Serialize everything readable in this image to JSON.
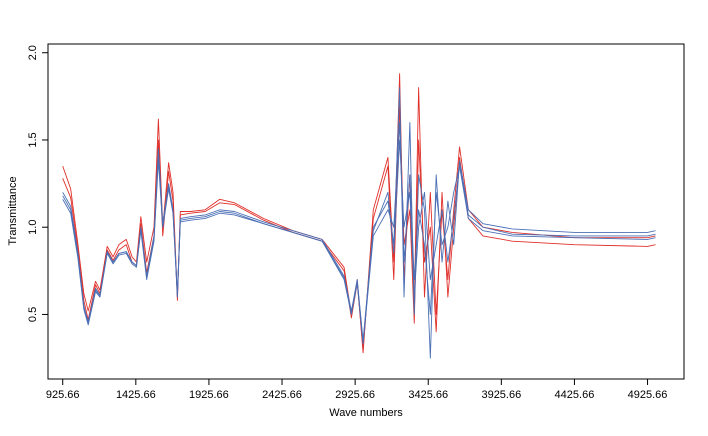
{
  "chart_data": {
    "type": "line",
    "xlabel": "Wave numbers",
    "ylabel": "Transmittance",
    "xlim": [
      825,
      5175
    ],
    "ylim": [
      0.13,
      2.05
    ],
    "x_ticks": [
      925.66,
      1425.66,
      1925.66,
      2425.66,
      2925.66,
      3425.66,
      3925.66,
      4425.66,
      4925.66
    ],
    "x_tick_labels": [
      "925.66",
      "1425.66",
      "1925.66",
      "2425.66",
      "2925.66",
      "3425.66",
      "3925.66",
      "4425.66",
      "4925.66"
    ],
    "y_ticks": [
      0.5,
      1.0,
      1.5,
      2.0
    ],
    "y_tick_labels": [
      "0.5",
      "1.0",
      "1.5",
      "2.0"
    ],
    "grid": false,
    "legend": "none",
    "colors": {
      "red": "#e0302a",
      "blue": "#4a6fb5"
    },
    "series": [
      {
        "color": "#e0302a",
        "values": [
          [
            925.66,
            1.35
          ],
          [
            980,
            1.22
          ],
          [
            1030,
            0.9
          ],
          [
            1070,
            0.62
          ],
          [
            1100,
            0.52
          ],
          [
            1150,
            0.69
          ],
          [
            1180,
            0.64
          ],
          [
            1230,
            0.89
          ],
          [
            1270,
            0.83
          ],
          [
            1310,
            0.9
          ],
          [
            1360,
            0.93
          ],
          [
            1400,
            0.83
          ],
          [
            1430,
            0.8
          ],
          [
            1460,
            1.06
          ],
          [
            1500,
            0.8
          ],
          [
            1550,
            1.0
          ],
          [
            1580,
            1.62
          ],
          [
            1610,
            1.0
          ],
          [
            1650,
            1.37
          ],
          [
            1680,
            1.2
          ],
          [
            1710,
            0.6
          ],
          [
            1730,
            1.09
          ],
          [
            1800,
            1.09
          ],
          [
            1900,
            1.1
          ],
          [
            2000,
            1.16
          ],
          [
            2100,
            1.14
          ],
          [
            2300,
            1.05
          ],
          [
            2500,
            0.98
          ],
          [
            2700,
            0.93
          ],
          [
            2850,
            0.77
          ],
          [
            2900,
            0.5
          ],
          [
            2940,
            0.7
          ],
          [
            2980,
            0.28
          ],
          [
            3050,
            1.1
          ],
          [
            3150,
            1.4
          ],
          [
            3190,
            0.8
          ],
          [
            3230,
            1.88
          ],
          [
            3260,
            0.7
          ],
          [
            3300,
            1.3
          ],
          [
            3330,
            0.55
          ],
          [
            3360,
            1.8
          ],
          [
            3400,
            0.6
          ],
          [
            3440,
            1.2
          ],
          [
            3480,
            0.5
          ],
          [
            3520,
            1.1
          ],
          [
            3560,
            0.7
          ],
          [
            3600,
            1.1
          ],
          [
            3640,
            1.46
          ],
          [
            3700,
            1.1
          ],
          [
            3800,
            1.0
          ],
          [
            4000,
            0.97
          ],
          [
            4425.66,
            0.94
          ],
          [
            4925.66,
            0.94
          ],
          [
            4980,
            0.95
          ]
        ]
      },
      {
        "color": "#e0302a",
        "values": [
          [
            925.66,
            1.28
          ],
          [
            980,
            1.17
          ],
          [
            1030,
            0.87
          ],
          [
            1070,
            0.58
          ],
          [
            1100,
            0.47
          ],
          [
            1150,
            0.67
          ],
          [
            1180,
            0.62
          ],
          [
            1230,
            0.87
          ],
          [
            1270,
            0.81
          ],
          [
            1310,
            0.87
          ],
          [
            1360,
            0.9
          ],
          [
            1400,
            0.8
          ],
          [
            1430,
            0.78
          ],
          [
            1460,
            1.02
          ],
          [
            1500,
            0.74
          ],
          [
            1550,
            0.95
          ],
          [
            1580,
            1.5
          ],
          [
            1610,
            0.95
          ],
          [
            1650,
            1.32
          ],
          [
            1680,
            1.15
          ],
          [
            1710,
            0.58
          ],
          [
            1730,
            1.07
          ],
          [
            1800,
            1.08
          ],
          [
            1900,
            1.09
          ],
          [
            2000,
            1.14
          ],
          [
            2100,
            1.13
          ],
          [
            2300,
            1.04
          ],
          [
            2500,
            0.97
          ],
          [
            2700,
            0.92
          ],
          [
            2850,
            0.75
          ],
          [
            2900,
            0.48
          ],
          [
            2940,
            0.68
          ],
          [
            2980,
            0.3
          ],
          [
            3050,
            1.05
          ],
          [
            3150,
            1.35
          ],
          [
            3190,
            0.7
          ],
          [
            3230,
            1.7
          ],
          [
            3260,
            0.9
          ],
          [
            3300,
            1.1
          ],
          [
            3330,
            0.45
          ],
          [
            3360,
            1.5
          ],
          [
            3400,
            0.8
          ],
          [
            3440,
            1.0
          ],
          [
            3480,
            0.4
          ],
          [
            3520,
            1.2
          ],
          [
            3560,
            0.6
          ],
          [
            3600,
            1.0
          ],
          [
            3640,
            1.4
          ],
          [
            3700,
            1.05
          ],
          [
            3800,
            0.95
          ],
          [
            4000,
            0.92
          ],
          [
            4425.66,
            0.9
          ],
          [
            4925.66,
            0.89
          ],
          [
            4980,
            0.9
          ]
        ]
      },
      {
        "color": "#4a6fb5",
        "values": [
          [
            925.66,
            1.2
          ],
          [
            980,
            1.12
          ],
          [
            1030,
            0.85
          ],
          [
            1070,
            0.55
          ],
          [
            1100,
            0.45
          ],
          [
            1150,
            0.65
          ],
          [
            1180,
            0.61
          ],
          [
            1230,
            0.86
          ],
          [
            1270,
            0.8
          ],
          [
            1310,
            0.85
          ],
          [
            1360,
            0.86
          ],
          [
            1400,
            0.8
          ],
          [
            1430,
            0.78
          ],
          [
            1460,
            1.0
          ],
          [
            1500,
            0.72
          ],
          [
            1550,
            0.95
          ],
          [
            1580,
            1.45
          ],
          [
            1610,
            1.02
          ],
          [
            1650,
            1.25
          ],
          [
            1680,
            1.1
          ],
          [
            1710,
            0.62
          ],
          [
            1730,
            1.05
          ],
          [
            1800,
            1.06
          ],
          [
            1900,
            1.07
          ],
          [
            2000,
            1.1
          ],
          [
            2100,
            1.09
          ],
          [
            2300,
            1.03
          ],
          [
            2500,
            0.98
          ],
          [
            2700,
            0.93
          ],
          [
            2850,
            0.72
          ],
          [
            2900,
            0.52
          ],
          [
            2940,
            0.7
          ],
          [
            2980,
            0.35
          ],
          [
            3050,
            1.0
          ],
          [
            3150,
            1.15
          ],
          [
            3190,
            0.9
          ],
          [
            3230,
            1.8
          ],
          [
            3260,
            0.6
          ],
          [
            3300,
            1.6
          ],
          [
            3330,
            0.5
          ],
          [
            3360,
            1.3
          ],
          [
            3400,
            1.1
          ],
          [
            3440,
            0.25
          ],
          [
            3480,
            1.3
          ],
          [
            3520,
            0.8
          ],
          [
            3560,
            1.15
          ],
          [
            3600,
            0.9
          ],
          [
            3640,
            1.38
          ],
          [
            3700,
            1.1
          ],
          [
            3800,
            1.02
          ],
          [
            4000,
            0.99
          ],
          [
            4425.66,
            0.97
          ],
          [
            4925.66,
            0.97
          ],
          [
            4980,
            0.98
          ]
        ]
      },
      {
        "color": "#4a6fb5",
        "values": [
          [
            925.66,
            1.16
          ],
          [
            980,
            1.08
          ],
          [
            1030,
            0.82
          ],
          [
            1070,
            0.53
          ],
          [
            1100,
            0.44
          ],
          [
            1150,
            0.63
          ],
          [
            1180,
            0.6
          ],
          [
            1230,
            0.85
          ],
          [
            1270,
            0.79
          ],
          [
            1310,
            0.84
          ],
          [
            1360,
            0.85
          ],
          [
            1400,
            0.79
          ],
          [
            1430,
            0.77
          ],
          [
            1460,
            0.98
          ],
          [
            1500,
            0.7
          ],
          [
            1550,
            0.92
          ],
          [
            1580,
            1.38
          ],
          [
            1610,
            1.0
          ],
          [
            1650,
            1.22
          ],
          [
            1680,
            1.08
          ],
          [
            1710,
            0.6
          ],
          [
            1730,
            1.03
          ],
          [
            1800,
            1.04
          ],
          [
            1900,
            1.05
          ],
          [
            2000,
            1.08
          ],
          [
            2100,
            1.07
          ],
          [
            2300,
            1.02
          ],
          [
            2500,
            0.97
          ],
          [
            2700,
            0.92
          ],
          [
            2850,
            0.7
          ],
          [
            2900,
            0.5
          ],
          [
            2940,
            0.68
          ],
          [
            2980,
            0.33
          ],
          [
            3050,
            0.95
          ],
          [
            3150,
            1.1
          ],
          [
            3190,
            1.0
          ],
          [
            3230,
            1.6
          ],
          [
            3260,
            0.8
          ],
          [
            3300,
            1.3
          ],
          [
            3330,
            0.7
          ],
          [
            3360,
            1.1
          ],
          [
            3400,
            0.9
          ],
          [
            3440,
            0.5
          ],
          [
            3480,
            1.2
          ],
          [
            3520,
            0.9
          ],
          [
            3560,
            1.0
          ],
          [
            3600,
            1.2
          ],
          [
            3640,
            1.35
          ],
          [
            3700,
            1.05
          ],
          [
            3800,
            0.98
          ],
          [
            4000,
            0.95
          ],
          [
            4425.66,
            0.94
          ],
          [
            4925.66,
            0.93
          ],
          [
            4980,
            0.94
          ]
        ]
      },
      {
        "color": "#4a6fb5",
        "values": [
          [
            925.66,
            1.18
          ],
          [
            980,
            1.1
          ],
          [
            1030,
            0.83
          ],
          [
            1070,
            0.54
          ],
          [
            1100,
            0.46
          ],
          [
            1150,
            0.64
          ],
          [
            1180,
            0.6
          ],
          [
            1230,
            0.86
          ],
          [
            1270,
            0.8
          ],
          [
            1310,
            0.85
          ],
          [
            1360,
            0.86
          ],
          [
            1400,
            0.8
          ],
          [
            1430,
            0.78
          ],
          [
            1460,
            0.99
          ],
          [
            1500,
            0.71
          ],
          [
            1550,
            0.93
          ],
          [
            1580,
            1.42
          ],
          [
            1610,
            1.0
          ],
          [
            1650,
            1.24
          ],
          [
            1680,
            1.09
          ],
          [
            1710,
            0.61
          ],
          [
            1730,
            1.04
          ],
          [
            1800,
            1.05
          ],
          [
            1900,
            1.06
          ],
          [
            2000,
            1.09
          ],
          [
            2100,
            1.08
          ],
          [
            2300,
            1.02
          ],
          [
            2500,
            0.97
          ],
          [
            2700,
            0.92
          ],
          [
            2850,
            0.71
          ],
          [
            2900,
            0.51
          ],
          [
            2940,
            0.69
          ],
          [
            2980,
            0.34
          ],
          [
            3050,
            0.98
          ],
          [
            3150,
            1.2
          ],
          [
            3190,
            0.85
          ],
          [
            3230,
            1.5
          ],
          [
            3260,
            1.0
          ],
          [
            3300,
            1.2
          ],
          [
            3330,
            0.6
          ],
          [
            3360,
            1.0
          ],
          [
            3400,
            1.2
          ],
          [
            3440,
            0.7
          ],
          [
            3480,
            0.9
          ],
          [
            3520,
            1.1
          ],
          [
            3560,
            0.8
          ],
          [
            3600,
            1.05
          ],
          [
            3640,
            1.36
          ],
          [
            3700,
            1.07
          ],
          [
            3800,
            1.0
          ],
          [
            4000,
            0.96
          ],
          [
            4425.66,
            0.95
          ],
          [
            4925.66,
            0.95
          ],
          [
            4980,
            0.96
          ]
        ]
      }
    ]
  }
}
